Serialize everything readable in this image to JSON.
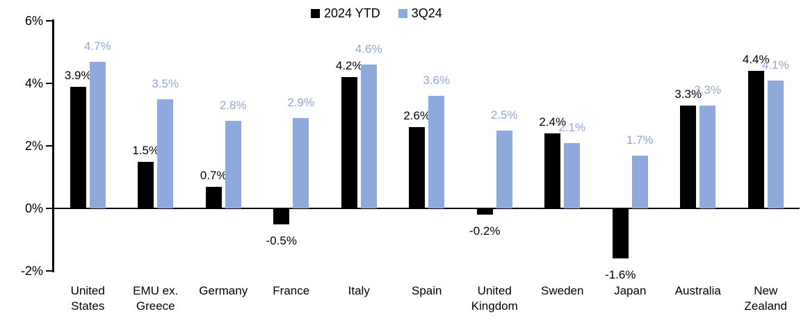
{
  "chart_data": {
    "type": "bar",
    "title": "",
    "categories": [
      "United States",
      "EMU ex. Greece",
      "Germany",
      "France",
      "Italy",
      "Spain",
      "United Kingdom",
      "Sweden",
      "Japan",
      "Australia",
      "New Zealand"
    ],
    "series": [
      {
        "name": "2024 YTD",
        "color": "#000000",
        "label_color": "#000000",
        "values": [
          3.9,
          1.5,
          0.7,
          -0.5,
          4.2,
          2.6,
          -0.2,
          2.4,
          -1.6,
          3.3,
          4.4
        ]
      },
      {
        "name": "3Q24",
        "color": "#8EA9DB",
        "label_color": "#8EA9DB",
        "values": [
          4.7,
          3.5,
          2.8,
          2.9,
          4.6,
          3.6,
          2.5,
          2.1,
          1.7,
          3.3,
          4.1
        ]
      }
    ],
    "ylim": [
      -2,
      6
    ],
    "yticks": [
      {
        "label": "6%",
        "value": 6
      },
      {
        "label": "4%",
        "value": 4
      },
      {
        "label": "2%",
        "value": 2
      },
      {
        "label": "0%",
        "value": 0
      },
      {
        "label": "-2%",
        "value": -2
      }
    ],
    "label_decimals": 1,
    "label_suffix": "%",
    "data_labels": true,
    "legend_position": "top-center",
    "grid": false,
    "axis_color": "#000000",
    "background": "#FFFFFF"
  }
}
